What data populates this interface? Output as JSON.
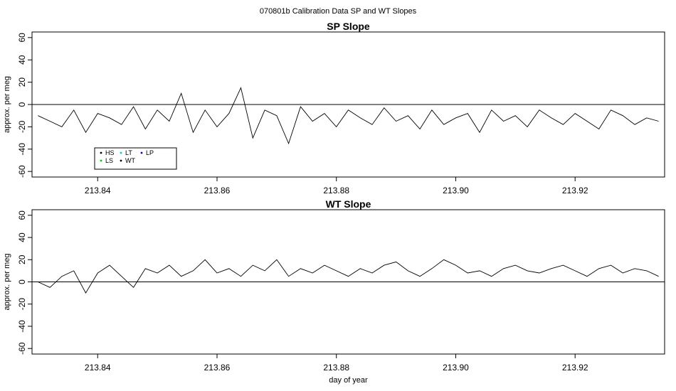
{
  "figure": {
    "title": "070801b   Calibration Data SP and WT Slopes"
  },
  "colors": {
    "WT": "#000000",
    "HS": "#000000",
    "LS": "#00cc00",
    "LT": "#00cccc",
    "LP": "#0000cc",
    "frame": "#000000",
    "zero_line": "#000000"
  },
  "chart_data": [
    {
      "type": "line",
      "title": "SP Slope",
      "xlabel": "",
      "ylabel": "approx. per meg",
      "xlim": [
        213.829,
        213.935
      ],
      "ylim": [
        -65,
        65
      ],
      "x_ticks": [
        213.84,
        213.86,
        213.88,
        213.9,
        213.92
      ],
      "x_tick_labels": [
        "213.84",
        "213.86",
        "213.88",
        "213.90",
        "213.92"
      ],
      "y_ticks": [
        -60,
        -40,
        -20,
        0,
        20,
        40,
        60
      ],
      "y_tick_labels": [
        "-60",
        "-40",
        "-20",
        "0",
        "20",
        "40",
        "60"
      ],
      "reference_line_y": 0,
      "legend": {
        "placement": "bottom-left",
        "entries": [
          "HS",
          "LS",
          "LT",
          "WT",
          "LP"
        ]
      },
      "series": [
        {
          "name": "WT",
          "x": [
            213.83,
            213.832,
            213.834,
            213.836,
            213.838,
            213.84,
            213.842,
            213.844,
            213.846,
            213.848,
            213.85,
            213.852,
            213.854,
            213.856,
            213.858,
            213.86,
            213.862,
            213.864,
            213.866,
            213.868,
            213.87,
            213.872,
            213.874,
            213.876,
            213.878,
            213.88,
            213.882,
            213.884,
            213.886,
            213.888,
            213.89,
            213.892,
            213.894,
            213.896,
            213.898,
            213.9,
            213.902,
            213.904,
            213.906,
            213.908,
            213.91,
            213.912,
            213.914,
            213.916,
            213.918,
            213.92,
            213.922,
            213.924,
            213.926,
            213.928,
            213.93,
            213.932,
            213.934
          ],
          "y": [
            -10,
            -15,
            -20,
            -5,
            -25,
            -8,
            -12,
            -18,
            -2,
            -22,
            -5,
            -15,
            10,
            -25,
            -5,
            -20,
            -8,
            15,
            -30,
            -5,
            -10,
            -35,
            -2,
            -15,
            -8,
            -20,
            -5,
            -12,
            -18,
            -3,
            -15,
            -10,
            -22,
            -5,
            -18,
            -12,
            -8,
            -25,
            -5,
            -15,
            -10,
            -20,
            -5,
            -12,
            -18,
            -8,
            -15,
            -22,
            -5,
            -10,
            -18,
            -12,
            -15
          ]
        }
      ]
    },
    {
      "type": "line",
      "title": "WT Slope",
      "xlabel": "day of year",
      "ylabel": "approx. per meg",
      "xlim": [
        213.829,
        213.935
      ],
      "ylim": [
        -65,
        65
      ],
      "x_ticks": [
        213.84,
        213.86,
        213.88,
        213.9,
        213.92
      ],
      "x_tick_labels": [
        "213.84",
        "213.86",
        "213.88",
        "213.90",
        "213.92"
      ],
      "y_ticks": [
        -60,
        -40,
        -20,
        0,
        20,
        40,
        60
      ],
      "y_tick_labels": [
        "-60",
        "-40",
        "-20",
        "0",
        "20",
        "40",
        "60"
      ],
      "reference_line_y": 0,
      "series": [
        {
          "name": "WT",
          "x": [
            213.83,
            213.832,
            213.834,
            213.836,
            213.838,
            213.84,
            213.842,
            213.844,
            213.846,
            213.848,
            213.85,
            213.852,
            213.854,
            213.856,
            213.858,
            213.86,
            213.862,
            213.864,
            213.866,
            213.868,
            213.87,
            213.872,
            213.874,
            213.876,
            213.878,
            213.88,
            213.882,
            213.884,
            213.886,
            213.888,
            213.89,
            213.892,
            213.894,
            213.896,
            213.898,
            213.9,
            213.902,
            213.904,
            213.906,
            213.908,
            213.91,
            213.912,
            213.914,
            213.916,
            213.918,
            213.92,
            213.922,
            213.924,
            213.926,
            213.928,
            213.93,
            213.932,
            213.934
          ],
          "y": [
            0,
            -5,
            5,
            10,
            -10,
            8,
            15,
            5,
            -5,
            12,
            8,
            15,
            5,
            10,
            20,
            8,
            12,
            5,
            15,
            10,
            20,
            5,
            12,
            8,
            15,
            10,
            5,
            12,
            8,
            15,
            18,
            10,
            5,
            12,
            20,
            15,
            8,
            10,
            5,
            12,
            15,
            10,
            8,
            12,
            15,
            10,
            5,
            12,
            15,
            8,
            12,
            10,
            5
          ]
        }
      ]
    }
  ]
}
